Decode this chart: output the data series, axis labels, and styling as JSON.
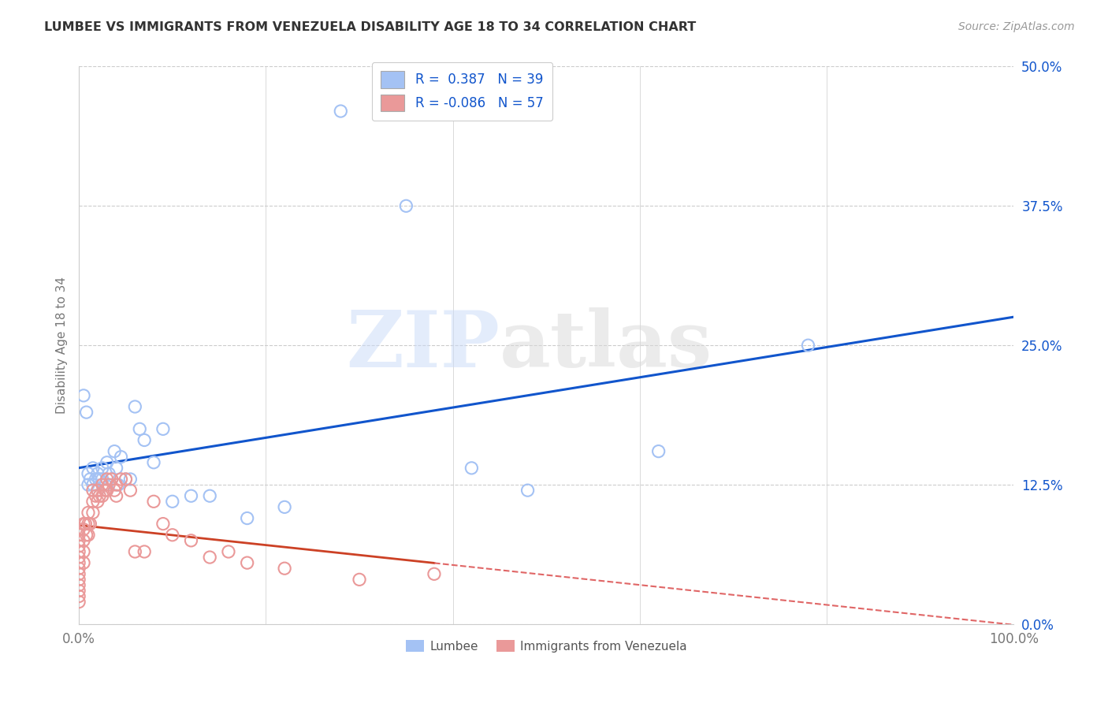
{
  "title": "LUMBEE VS IMMIGRANTS FROM VENEZUELA DISABILITY AGE 18 TO 34 CORRELATION CHART",
  "source": "Source: ZipAtlas.com",
  "ylabel": "Disability Age 18 to 34",
  "xlim": [
    0.0,
    1.0
  ],
  "ylim": [
    0.0,
    0.5
  ],
  "yticks": [
    0.0,
    0.125,
    0.25,
    0.375,
    0.5
  ],
  "ytick_labels": [
    "0.0%",
    "12.5%",
    "25.0%",
    "37.5%",
    "50.0%"
  ],
  "xtick_labels": [
    "0.0%",
    "100.0%"
  ],
  "legend_blue_r": "0.387",
  "legend_blue_n": "39",
  "legend_pink_r": "-0.086",
  "legend_pink_n": "57",
  "legend_label_blue": "Lumbee",
  "legend_label_pink": "Immigrants from Venezuela",
  "watermark_zip": "ZIP",
  "watermark_atlas": "atlas",
  "blue_color": "#a4c2f4",
  "pink_color": "#ea9999",
  "blue_line_color": "#1155cc",
  "pink_line_solid_color": "#cc4125",
  "pink_line_dash_color": "#e06666",
  "background_color": "#ffffff",
  "grid_color": "#cccccc",
  "lumbee_x": [
    0.005,
    0.008,
    0.01,
    0.01,
    0.012,
    0.015,
    0.015,
    0.018,
    0.02,
    0.02,
    0.022,
    0.025,
    0.025,
    0.028,
    0.03,
    0.032,
    0.035,
    0.038,
    0.04,
    0.042,
    0.045,
    0.05,
    0.055,
    0.06,
    0.065,
    0.07,
    0.08,
    0.09,
    0.1,
    0.12,
    0.14,
    0.18,
    0.22,
    0.28,
    0.35,
    0.42,
    0.48,
    0.62,
    0.78
  ],
  "lumbee_y": [
    0.205,
    0.19,
    0.135,
    0.125,
    0.13,
    0.14,
    0.125,
    0.13,
    0.135,
    0.12,
    0.13,
    0.14,
    0.13,
    0.125,
    0.145,
    0.135,
    0.13,
    0.155,
    0.14,
    0.125,
    0.15,
    0.13,
    0.13,
    0.195,
    0.175,
    0.165,
    0.145,
    0.175,
    0.11,
    0.115,
    0.115,
    0.095,
    0.105,
    0.46,
    0.375,
    0.14,
    0.12,
    0.155,
    0.25
  ],
  "venezuela_x": [
    0.0,
    0.0,
    0.0,
    0.0,
    0.0,
    0.0,
    0.0,
    0.0,
    0.0,
    0.0,
    0.0,
    0.0,
    0.0,
    0.0,
    0.005,
    0.005,
    0.005,
    0.005,
    0.005,
    0.007,
    0.008,
    0.01,
    0.01,
    0.01,
    0.012,
    0.015,
    0.015,
    0.015,
    0.018,
    0.02,
    0.02,
    0.022,
    0.025,
    0.025,
    0.028,
    0.03,
    0.03,
    0.032,
    0.035,
    0.038,
    0.04,
    0.04,
    0.045,
    0.05,
    0.055,
    0.06,
    0.07,
    0.08,
    0.09,
    0.1,
    0.12,
    0.14,
    0.16,
    0.18,
    0.22,
    0.3,
    0.38
  ],
  "venezuela_y": [
    0.085,
    0.08,
    0.075,
    0.07,
    0.065,
    0.06,
    0.055,
    0.05,
    0.045,
    0.04,
    0.035,
    0.03,
    0.025,
    0.02,
    0.09,
    0.085,
    0.075,
    0.065,
    0.055,
    0.09,
    0.08,
    0.1,
    0.09,
    0.08,
    0.09,
    0.12,
    0.11,
    0.1,
    0.115,
    0.12,
    0.11,
    0.115,
    0.125,
    0.115,
    0.12,
    0.13,
    0.12,
    0.125,
    0.13,
    0.12,
    0.125,
    0.115,
    0.13,
    0.13,
    0.12,
    0.065,
    0.065,
    0.11,
    0.09,
    0.08,
    0.075,
    0.06,
    0.065,
    0.055,
    0.05,
    0.04,
    0.045
  ]
}
